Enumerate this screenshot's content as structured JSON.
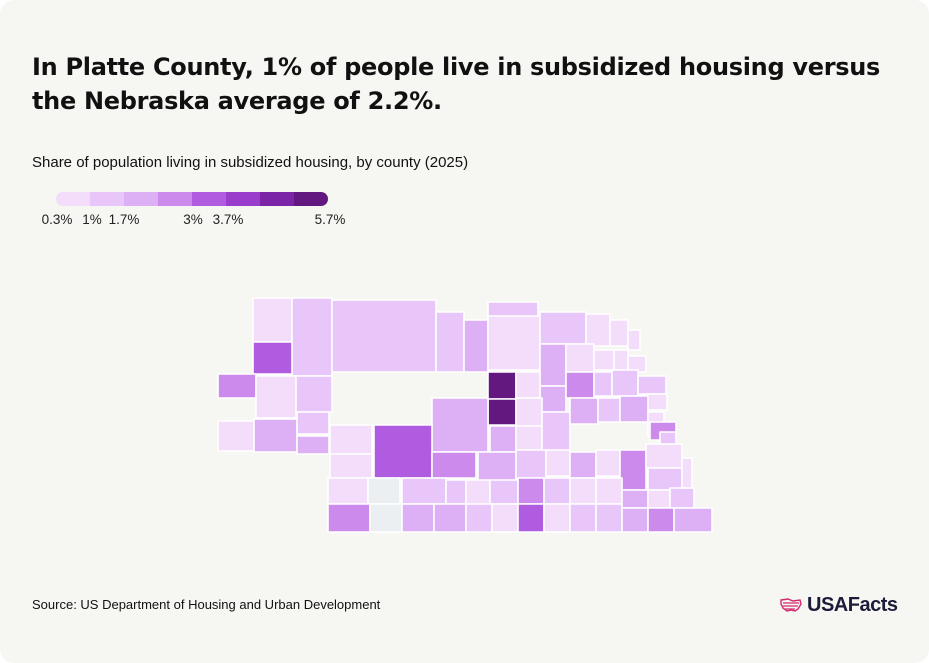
{
  "title": "In Platte County, 1% of people live in subsidized housing versus the Nebraska average of 2.2%.",
  "subtitle": "Share of population living in subsidized housing, by county (2025)",
  "legend": {
    "labels": [
      "0.3%",
      "1%",
      "1.7%",
      "3%",
      "3.7%",
      "5.7%"
    ],
    "colors": [
      "#f3ddfb",
      "#e9c6fa",
      "#ddb0f5",
      "#cb8aec",
      "#b05ce0",
      "#9a3ccc",
      "#7c24a8",
      "#62187e"
    ]
  },
  "palette": {
    "background": "#f6f6f3",
    "no_data": "#eceff1",
    "county_border": "#ffffff"
  },
  "source": "Source: US Department of Housing and Urban Development",
  "brand": {
    "name": "USAFacts",
    "icon": "us-flag-map-icon"
  }
}
